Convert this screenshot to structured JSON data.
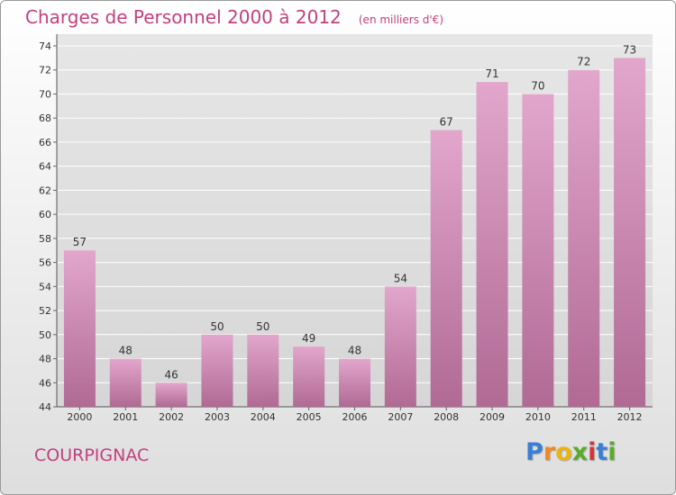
{
  "header": {
    "title": "Charges de Personnel 2000 à 2012",
    "subtitle": "(en milliers d'€)"
  },
  "place": "COURPIGNAC",
  "brand": {
    "letters": [
      "P",
      "r",
      "o",
      "x",
      "i",
      "t",
      "i"
    ],
    "colors": [
      "#3a7fd5",
      "#f08a1e",
      "#e8b60f",
      "#5aab2b",
      "#d4363a",
      "#3a7fd5",
      "#5aab2b"
    ]
  },
  "colors": {
    "bar_top": "#e2a6cc",
    "bar_bottom": "#b06a94",
    "title": "#c2407f",
    "grid": "#ffffff"
  },
  "chart_data": {
    "type": "bar",
    "categories": [
      "2000",
      "2001",
      "2002",
      "2003",
      "2004",
      "2005",
      "2006",
      "2007",
      "2008",
      "2009",
      "2010",
      "2011",
      "2012"
    ],
    "values": [
      57,
      48,
      46,
      50,
      50,
      49,
      48,
      54,
      67,
      71,
      70,
      72,
      73
    ],
    "title": "Charges de Personnel 2000 à 2012",
    "subtitle": "(en milliers d'€)",
    "ylim": [
      44,
      74
    ],
    "ytick_step": 2,
    "grid": true
  }
}
